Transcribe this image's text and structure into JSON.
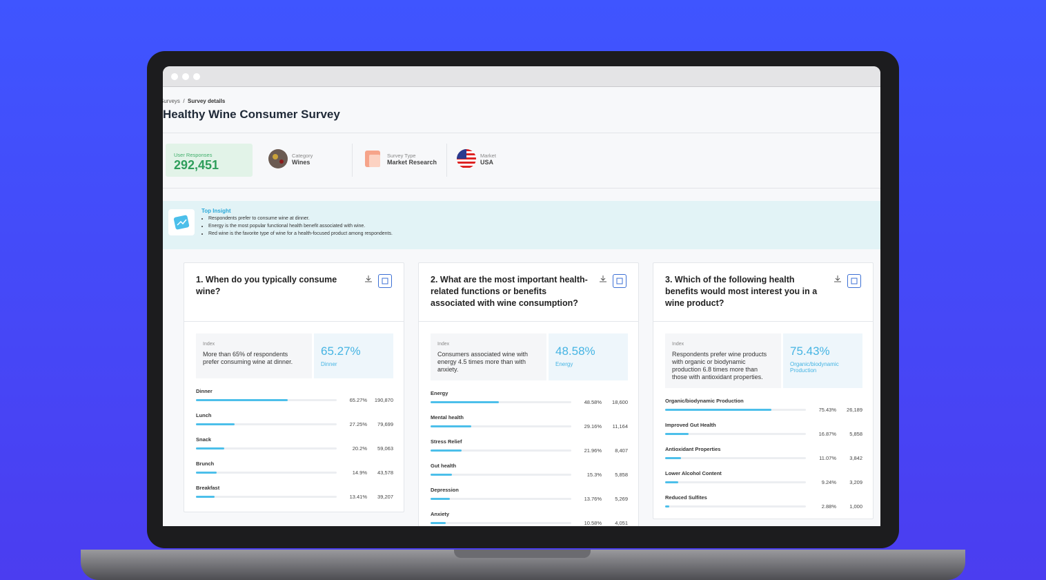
{
  "breadcrumb": [
    "Surveys",
    "Survey details"
  ],
  "title": "Healthy Wine Consumer Survey",
  "stats": {
    "responses_label": "User Responses",
    "responses": "292,451",
    "items": [
      {
        "label": "Category",
        "value": "Wines"
      },
      {
        "label": "Survey Type",
        "value": "Market Research"
      },
      {
        "label": "Market",
        "value": "USA"
      }
    ]
  },
  "insight": {
    "title": "Top Insight",
    "points": [
      "Respondents prefer to consume wine at dinner.",
      "Energy is the most popular functional health benefit associated with wine.",
      "Red wine is the favorite type of wine for a health-focused product among respondents."
    ]
  },
  "questions": [
    {
      "title": "1. When do you typically consume wine?",
      "index_label": "Index",
      "index_text": "More than 65% of respondents prefer consuming wine at dinner.",
      "highlight": "65.27%",
      "highlight_label": "Dinner",
      "options": [
        "Dinner",
        "Lunch",
        "Snack",
        "Brunch",
        "Breakfast"
      ],
      "values": [
        65.27,
        27.25,
        20.2,
        14.9,
        13.41
      ],
      "value_labels": [
        "65.27%",
        "27.25%",
        "20.2%",
        "14.9%",
        "13.41%"
      ],
      "counts": [
        "190,870",
        "79,699",
        "59,063",
        "43,578",
        "39,207"
      ]
    },
    {
      "title": "2. What are the most important health-related functions or benefits associated with wine consumption?",
      "index_label": "Index",
      "index_text": "Consumers associated wine with energy 4.5 times more than with anxiety.",
      "highlight": "48.58%",
      "highlight_label": "Energy",
      "options": [
        "Energy",
        "Mental health",
        "Stress Relief",
        "Gut health",
        "Depression",
        "Anxiety"
      ],
      "values": [
        48.58,
        29.16,
        21.96,
        15.3,
        13.76,
        10.58
      ],
      "value_labels": [
        "48.58%",
        "29.16%",
        "21.96%",
        "15.3%",
        "13.76%",
        "10.58%"
      ],
      "counts": [
        "18,600",
        "11,164",
        "8,407",
        "5,858",
        "5,269",
        "4,051"
      ]
    },
    {
      "title": "3. Which of the following health benefits would most interest you in a wine product?",
      "index_label": "Index",
      "index_text": "Respondents prefer wine products with organic or biodynamic production 6.8 times more than those with antioxidant properties.",
      "highlight": "75.43%",
      "highlight_label": "Organic/biodynamic Production",
      "options": [
        "Organic/biodynamic Production",
        "Improved Gut Health",
        "Antioxidant Properties",
        "Lower Alcohol Content",
        "Reduced Sulfites"
      ],
      "values": [
        75.43,
        16.87,
        11.07,
        9.24,
        2.88
      ],
      "value_labels": [
        "75.43%",
        "16.87%",
        "11.07%",
        "9.24%",
        "2.88%"
      ],
      "counts": [
        "26,189",
        "5,858",
        "3,842",
        "3,209",
        "1,000"
      ]
    }
  ]
}
